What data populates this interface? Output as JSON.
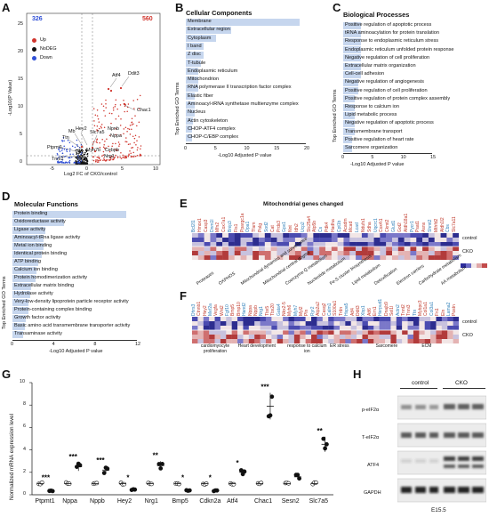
{
  "panel_labels": {
    "a": "A",
    "b": "B",
    "c": "C",
    "d": "D",
    "e": "E",
    "f": "F",
    "g": "G",
    "h": "H"
  },
  "volcano": {
    "ylabel": "-Log10(P Value)",
    "xlabel": "Log2 FC of CKO/control",
    "count_down": "326",
    "count_up": "560",
    "legend": [
      {
        "label": "Up",
        "color": "#d0342c"
      },
      {
        "label": "NoDEG",
        "color": "#111111"
      },
      {
        "label": "Down",
        "color": "#2f4fd6"
      }
    ],
    "yticks": [
      "25",
      "20",
      "15",
      "10",
      "5",
      "0"
    ],
    "xticks": [
      "-5",
      "0",
      "5",
      "10"
    ],
    "genes": [
      "Atf4",
      "Ddit3",
      "Chac1",
      "Hey2",
      "Slc7a5",
      "Mb",
      "Ttn",
      "Ptpmt1",
      "Tnni2",
      "Npnb",
      "Nppa",
      "Cebpb",
      "Nrg1",
      "Myh7b"
    ],
    "colors": {
      "up": "#d0342c",
      "nodeg": "#111111",
      "down": "#2f4fd6"
    }
  },
  "cc": {
    "title": "Cellular Components",
    "ylabel": "Top Enriched GO Terms",
    "xlabel": "-Log10 Adjusted P value",
    "xticks": [
      "0",
      "5",
      "10",
      "15",
      "20"
    ],
    "xmax": 20,
    "terms": [
      {
        "label": "Membrane",
        "value": 19
      },
      {
        "label": "Extracellular region",
        "value": 7.5
      },
      {
        "label": "Cytoplasm",
        "value": 5
      },
      {
        "label": "I band",
        "value": 3
      },
      {
        "label": "Z disc",
        "value": 3
      },
      {
        "label": "T-tubule",
        "value": 2.5
      },
      {
        "label": "Endoplasmic reticulum",
        "value": 2
      },
      {
        "label": "Mitochondrion",
        "value": 2
      },
      {
        "label": "RNA polymerase II transcription factor complex",
        "value": 2
      },
      {
        "label": "Elastic fiber",
        "value": 1.5
      },
      {
        "label": "Aminoacyl-tRNA synthetase multienzyme complex",
        "value": 1.5
      },
      {
        "label": "Nucleus",
        "value": 1.5
      },
      {
        "label": "Actin cytoskeleton",
        "value": 1.2
      },
      {
        "label": "CHOP-ATF4 complex",
        "value": 1
      },
      {
        "label": "CHOP-C/EBP complex",
        "value": 1
      }
    ]
  },
  "bp": {
    "title": "Biological Processes",
    "ylabel": "Top Enriched GO Terms",
    "xlabel": "-Log10 Adjusted P value",
    "xticks": [
      "0",
      "5",
      "10",
      "15"
    ],
    "xmax": 15,
    "terms": [
      {
        "label": "Positive regulation of apoptotic process",
        "value": 3
      },
      {
        "label": "tRNA aminoacylation for protein translation",
        "value": 3
      },
      {
        "label": "Response to endoplasmic reticulum stress",
        "value": 3
      },
      {
        "label": "Endoplasmic reticulum unfolded protein response",
        "value": 3
      },
      {
        "label": "Negative regulation of cell proliferation",
        "value": 3
      },
      {
        "label": "Extracellular matrix organization",
        "value": 3
      },
      {
        "label": "Cell-cell adhesion",
        "value": 3
      },
      {
        "label": "Negative regulation of angiogenesis",
        "value": 2.5
      },
      {
        "label": "Positive regulation of cell proliferation",
        "value": 2.5
      },
      {
        "label": "Positive regulation of protein complex assembly",
        "value": 2
      },
      {
        "label": "Response to calcium ion",
        "value": 2
      },
      {
        "label": "Lipid metabolic process",
        "value": 2
      },
      {
        "label": "Negative regulation of apoptotic process",
        "value": 2
      },
      {
        "label": "Transmembrane transport",
        "value": 2
      },
      {
        "label": "Positive regulation of heart rate",
        "value": 1.5
      },
      {
        "label": "Sarcomere organization",
        "value": 1.5
      }
    ]
  },
  "mf": {
    "title": "Molecular Functions",
    "ylabel": "Top Enriched GO Terms",
    "xlabel": "-Log10 Adjusted P value",
    "xticks": [
      "0",
      "4",
      "8",
      "12"
    ],
    "xmax": 12,
    "terms": [
      {
        "label": "Protein binding",
        "value": 11
      },
      {
        "label": "Oxidoreductase activity",
        "value": 5
      },
      {
        "label": "Ligase activity",
        "value": 3.2
      },
      {
        "label": "Aminoacyl-tRna ligase activity",
        "value": 3
      },
      {
        "label": "Metal ion binding",
        "value": 3
      },
      {
        "label": "Identical protein binding",
        "value": 2.8
      },
      {
        "label": "ATP binding",
        "value": 2.5
      },
      {
        "label": "Calcium ion binding",
        "value": 2.3
      },
      {
        "label": "Protein homodimerization activity",
        "value": 2.2
      },
      {
        "label": "Extracellular matrix binding",
        "value": 1.8
      },
      {
        "label": "Hydrolase activity",
        "value": 1.7
      },
      {
        "label": "Very-low-density lipoprotein particle receptor activity",
        "value": 1.5
      },
      {
        "label": "Protein-containing complex binding",
        "value": 1.5
      },
      {
        "label": "Growth factor activity",
        "value": 1.3
      },
      {
        "label": "Basic amino acid transmembrane transporter activity",
        "value": 1.2
      },
      {
        "label": "Transaminase activity",
        "value": 1
      }
    ]
  },
  "heat_e": {
    "title": "Mitochondrial genes changed",
    "rows": [
      "control",
      "CKO"
    ],
    "genes": [
      "Bcl2l1",
      "Hmox1",
      "Casp3",
      "Dnm1l",
      "Mfn2",
      "Cox7a1",
      "Bnip3",
      "Fis1",
      "Ppargc1a",
      "Opa1",
      "Tfam",
      "Polg",
      "Sod2",
      "Cat",
      "Prdx3",
      "Gpx1",
      "Nnt",
      "Idh2",
      "Ucp2",
      "Slc25a4",
      "Atp5b",
      "Cs",
      "Pdk4",
      "Hadha",
      "Cpt1b",
      "Acadm",
      "Mcad",
      "Lcad",
      "Ndufs1",
      "Sdha",
      "Uqcrc1",
      "Cox4i1",
      "Ckmt2",
      "Glud1",
      "Got2",
      "Aldh18a1",
      "Pycr1",
      "Psat1",
      "Asns",
      "Shmt2",
      "Mthfd2",
      "Aldh1l2",
      "Cbs",
      "Slc7a11"
    ],
    "categories": [
      "Proteases",
      "OXPHOS",
      "Mitochondrial dynamics and surveillance",
      "Mitochondrial central dogma",
      "Coenzyme Q metabolism",
      "Nucleotide metabolism",
      "Fe-S cluster biosynthesis",
      "Lipid metabolism",
      "Detoxification",
      "Electron carriers",
      "Carbohydrate metabolism",
      "AA metabolism"
    ],
    "scale_colors": [
      "#2b2b9b",
      "#6a6ac4",
      "#f4e9e9",
      "#e0a7a7",
      "#c24a4a"
    ]
  },
  "heat_f": {
    "rows": [
      "control",
      "CKO"
    ],
    "genes": [
      "Dhrs3",
      "Ctnnb1",
      "Hey2",
      "Mef2a",
      "Vegfa",
      "Wnt2",
      "Fgf10",
      "Bmp5",
      "Bmp10",
      "Hand2",
      "Nppa",
      "Nppb",
      "Nrg1",
      "Tbx5",
      "Tbx20",
      "Gata4",
      "Nkx2-5",
      "Myh6",
      "Myh7",
      "Myl2",
      "Pln",
      "Ryr2",
      "Atp2a2",
      "Casq2",
      "Calm1",
      "S100a1",
      "Trdn",
      "Hspa5",
      "Atf4",
      "Ddit3",
      "Xbp1",
      "Atf6",
      "Ern1",
      "Herpud1",
      "Dnajb9",
      "Sel1l",
      "Actn2",
      "Tnnt2",
      "Tnni3",
      "Ttn",
      "Mybpc3",
      "Col1a1",
      "Col3a1",
      "Fn1",
      "Eln",
      "Lama2",
      "Postn"
    ],
    "categories": [
      "cardiomyocyte proliferation",
      "Heart development",
      "response to calcium ion",
      "ER stress",
      "Sarcomere",
      "ECM"
    ]
  },
  "qpcr": {
    "ylabel": "Normalized mRNA expression level",
    "yticks": [
      "10",
      "8",
      "6",
      "4",
      "2",
      "0"
    ],
    "ymax": 10,
    "genes": [
      {
        "name": "Ptpmt1",
        "control": 1.0,
        "cko": 0.35,
        "sig": "***"
      },
      {
        "name": "Nppa",
        "control": 1.0,
        "cko": 2.5,
        "sig": "***"
      },
      {
        "name": "Nppb",
        "control": 1.0,
        "cko": 2.2,
        "sig": "***"
      },
      {
        "name": "Hey2",
        "control": 1.0,
        "cko": 0.45,
        "sig": "*"
      },
      {
        "name": "Nrg1",
        "control": 1.0,
        "cko": 2.6,
        "sig": "**"
      },
      {
        "name": "Bmp5",
        "control": 1.0,
        "cko": 0.4,
        "sig": "*"
      },
      {
        "name": "Cdkn2a",
        "control": 1.0,
        "cko": 0.35,
        "sig": "*"
      },
      {
        "name": "Atf4",
        "control": 1.0,
        "cko": 2.0,
        "sig": "*"
      },
      {
        "name": "Chac1",
        "control": 1.0,
        "cko": 7.9,
        "sig": "***"
      },
      {
        "name": "Sesn2",
        "control": 1.0,
        "cko": 1.6,
        "sig": ""
      },
      {
        "name": "Slc7a5",
        "control": 1.0,
        "cko": 4.5,
        "sig": "**"
      }
    ]
  },
  "western": {
    "group_labels": [
      "control",
      "CKO"
    ],
    "bands": [
      "p-eIF2α",
      "T-eIF2α",
      "ATF4",
      "GAPDH"
    ],
    "stage": "E15.5"
  }
}
